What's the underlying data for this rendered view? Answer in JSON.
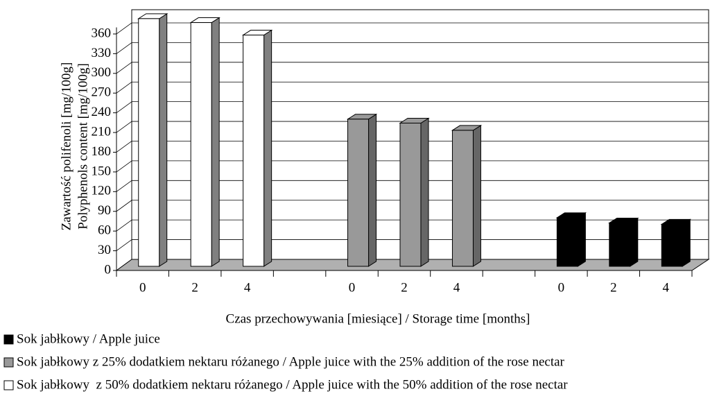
{
  "chart_data": {
    "type": "bar3d",
    "ylabel": [
      "Zawartość polifenoli [mg/100g]",
      "Polyphenols content [mg/100g]"
    ],
    "xlabel": "Czas przechowywania [miesiące] / Storage time [months]",
    "categories": [
      "0",
      "2",
      "4",
      null,
      "0",
      "2",
      "4",
      null,
      "0",
      "2",
      "4"
    ],
    "series": [
      {
        "name": "Sok jabłkowy / Apple juice",
        "color": "#000000",
        "side": "#000000",
        "values": [
          null,
          null,
          null,
          null,
          null,
          null,
          null,
          null,
          74,
          66,
          64
        ]
      },
      {
        "name": "Sok jabłkowy z 25% dodatkiem nektaru różanego / Apple juice with the 25% addition of the rose nectar",
        "color": "#999999",
        "side": "#666666",
        "values": [
          null,
          null,
          null,
          null,
          224,
          218,
          207,
          null,
          null,
          null,
          null
        ]
      },
      {
        "name": "Sok jabłkowy  z 50% dodatkiem nektaru różanego / Apple juice with the 50% addition of the rose nectar",
        "color": "#ffffff",
        "side": "#808080",
        "values": [
          377,
          371,
          352,
          null,
          null,
          null,
          null,
          null,
          null,
          null,
          null
        ]
      }
    ],
    "ylim": [
      0,
      370
    ],
    "yticks": [
      0,
      30,
      60,
      90,
      120,
      150,
      180,
      210,
      240,
      270,
      300,
      330,
      360
    ],
    "grid": true
  }
}
